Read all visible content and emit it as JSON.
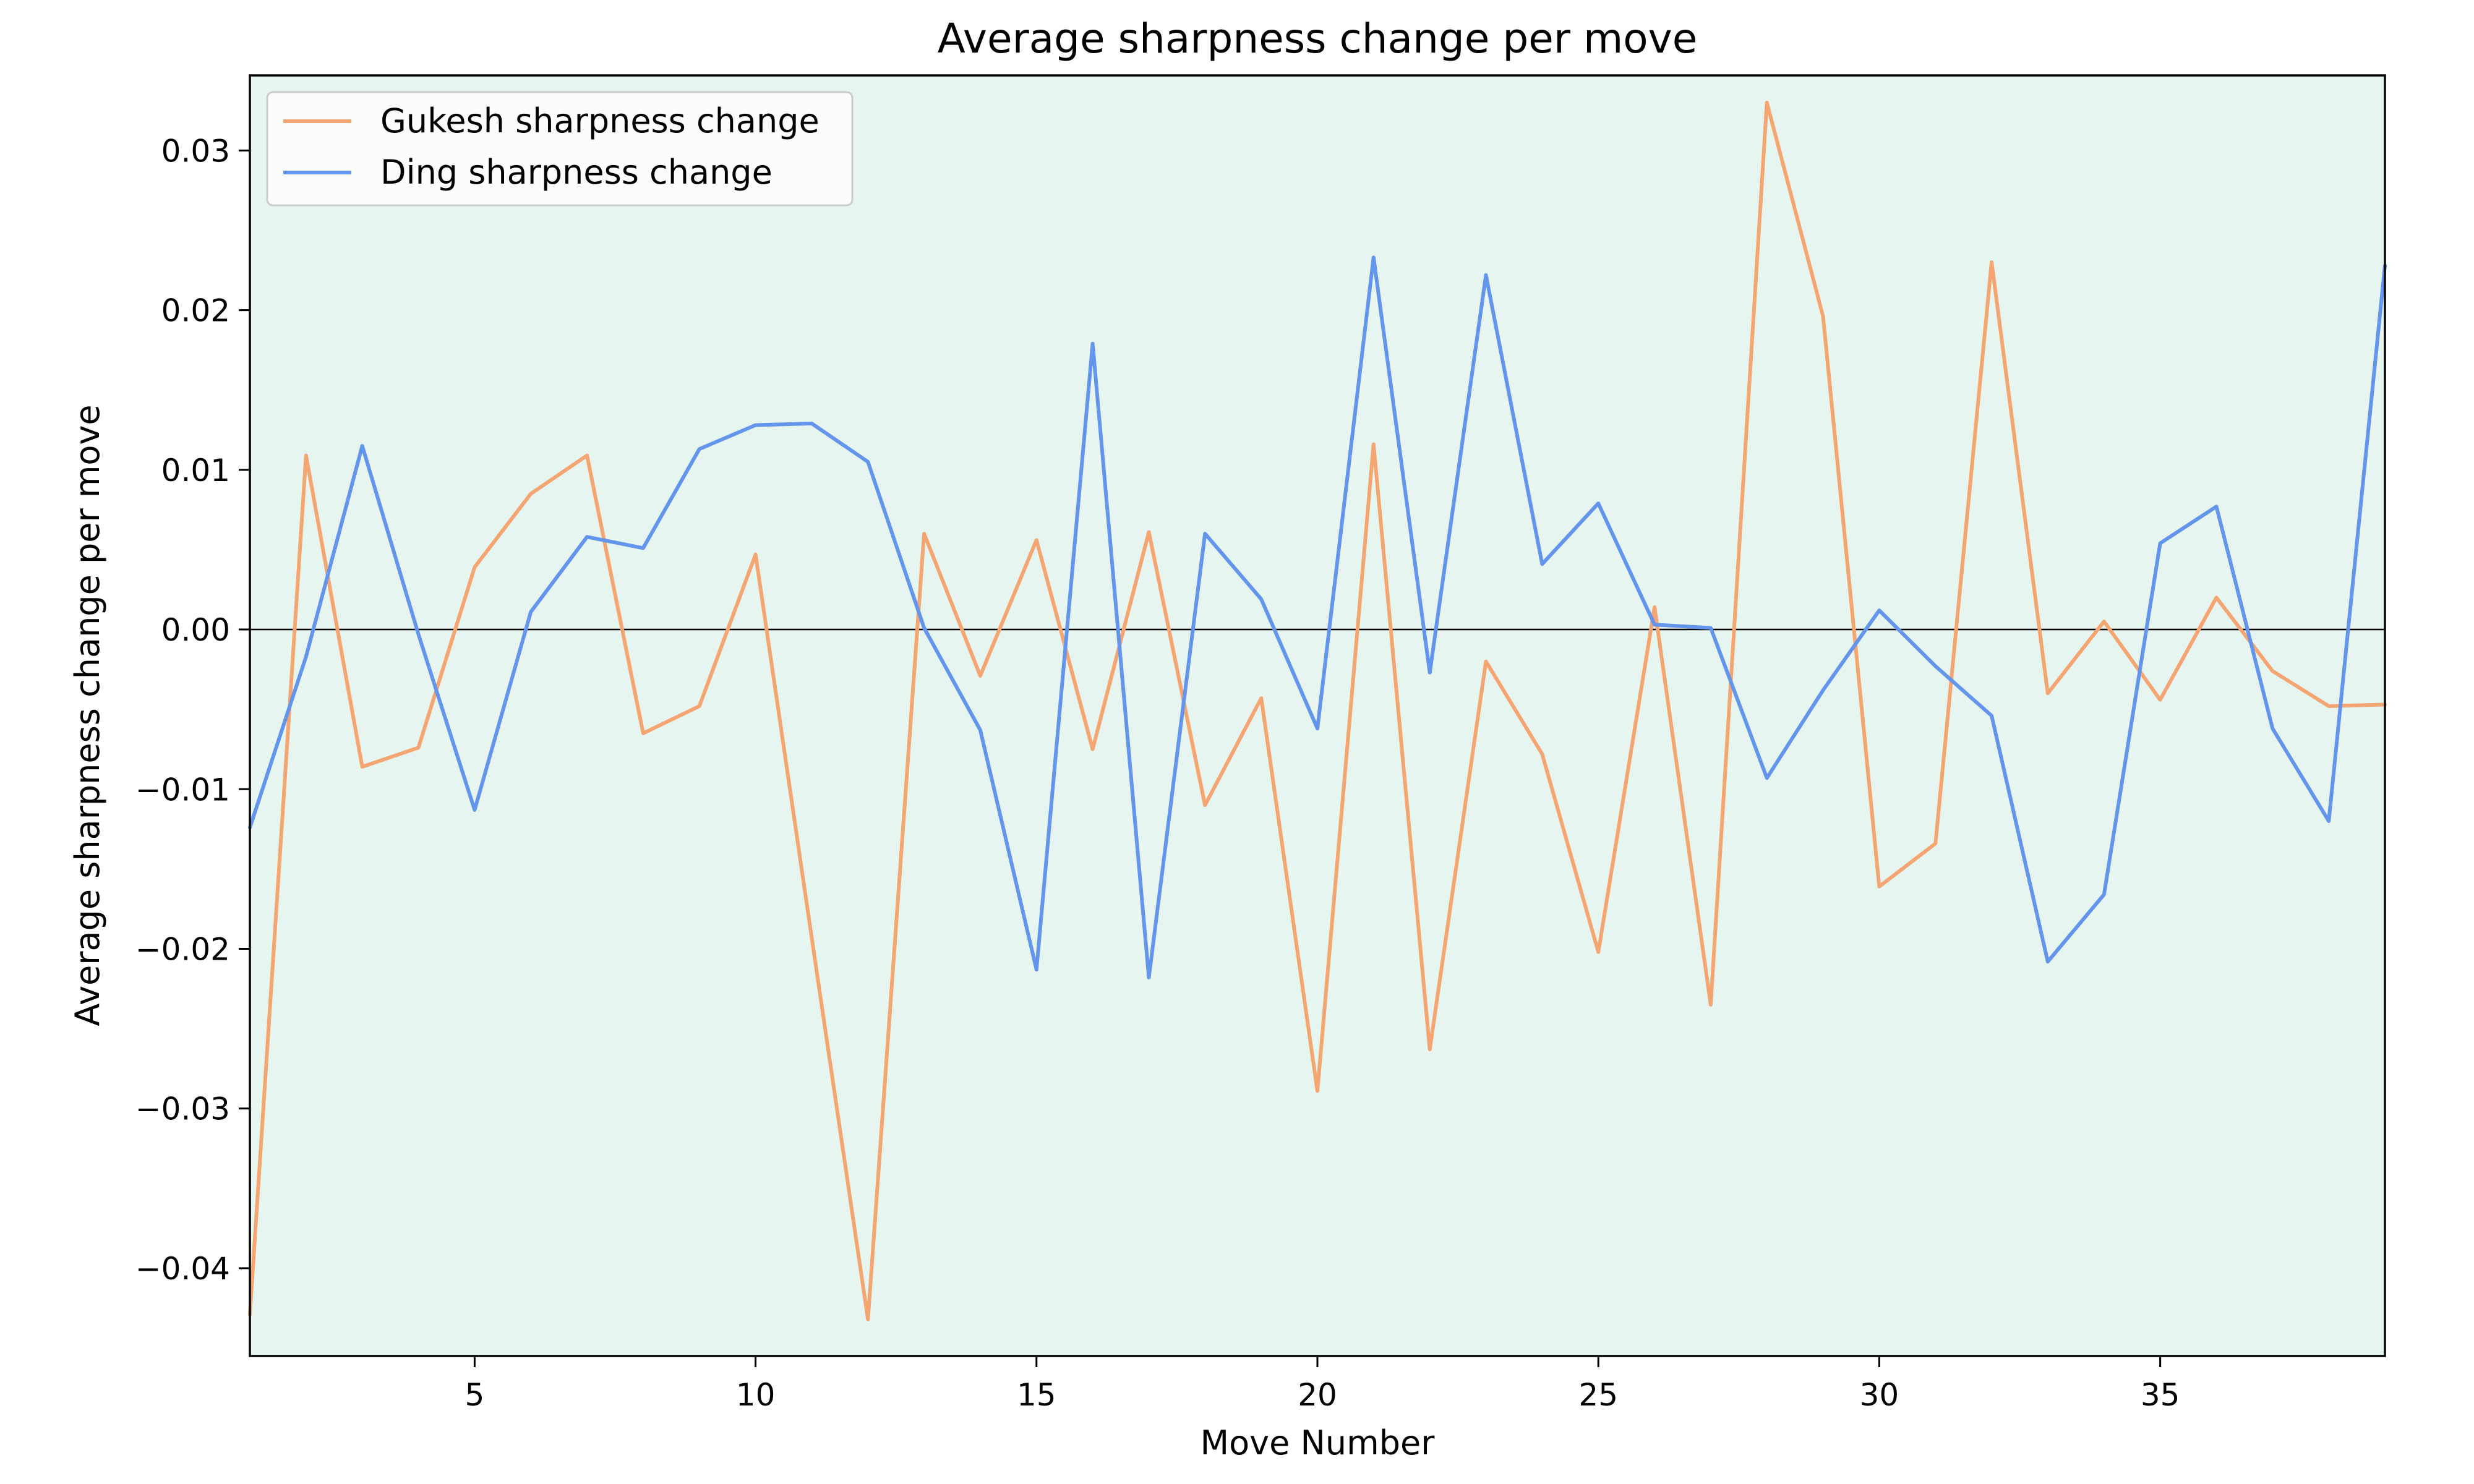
{
  "chart_data": {
    "type": "line",
    "title": "Average sharpness change per move",
    "xlabel": "Move Number",
    "ylabel": "Average sharpness change per move",
    "xlim": [
      1,
      39
    ],
    "ylim": [
      -0.0455,
      0.0347
    ],
    "xticks": [
      5,
      10,
      15,
      20,
      25,
      30,
      35
    ],
    "yticks": [
      -0.04,
      -0.03,
      -0.02,
      -0.01,
      0.0,
      0.01,
      0.02,
      0.03
    ],
    "ytick_labels": [
      "−0.04",
      "−0.03",
      "−0.02",
      "−0.01",
      "0.00",
      "0.01",
      "0.02",
      "0.03"
    ],
    "zero_line": true,
    "grid": false,
    "background_color": "#e6f5ef",
    "legend_position": "top-left",
    "x": [
      1,
      2,
      3,
      4,
      5,
      6,
      7,
      8,
      9,
      10,
      11,
      12,
      13,
      14,
      15,
      16,
      17,
      18,
      19,
      20,
      21,
      22,
      23,
      24,
      25,
      26,
      27,
      28,
      29,
      30,
      31,
      32,
      33,
      34,
      35,
      36,
      37,
      38,
      39
    ],
    "series": [
      {
        "name": "Gukesh sharpness change",
        "color": "#f4a572",
        "values": [
          -0.0429,
          0.0109,
          -0.0086,
          -0.0074,
          0.0039,
          0.0085,
          0.0109,
          -0.0065,
          -0.0048,
          0.0047,
          -0.0193,
          -0.0432,
          0.006,
          -0.0029,
          0.0056,
          -0.0075,
          0.0061,
          -0.011,
          -0.0043,
          -0.0289,
          0.0116,
          -0.0263,
          -0.002,
          -0.0078,
          -0.0202,
          0.0014,
          -0.0235,
          0.033,
          0.0196,
          -0.0161,
          -0.0134,
          0.023,
          -0.004,
          0.0005,
          -0.0044,
          0.002,
          -0.0026,
          -0.0048,
          -0.0047
        ]
      },
      {
        "name": "Ding sharpness change",
        "color": "#6495ed",
        "values": [
          -0.0124,
          -0.0017,
          0.0115,
          -0.0003,
          -0.0113,
          0.0011,
          0.0058,
          0.0051,
          0.0113,
          0.0128,
          0.0129,
          0.0105,
          0.0001,
          -0.0063,
          -0.0213,
          0.0179,
          -0.0218,
          0.006,
          0.0019,
          -0.0062,
          0.0233,
          -0.0027,
          0.0222,
          0.0041,
          0.0079,
          0.0003,
          0.0001,
          -0.0093,
          -0.0038,
          0.0012,
          -0.0023,
          -0.0054,
          -0.0208,
          -0.0166,
          0.0054,
          0.0077,
          -0.0062,
          -0.012,
          0.0228
        ]
      }
    ]
  }
}
